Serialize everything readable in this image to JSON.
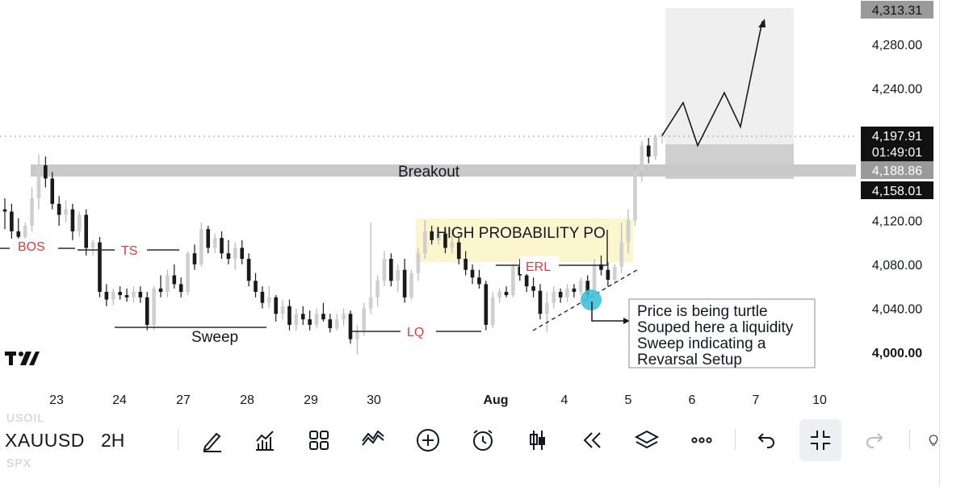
{
  "chart_data": {
    "type": "candlestick",
    "symbol": "XAUUSD",
    "timeframe": "2H",
    "x_ticks": [
      "23",
      "24",
      "27",
      "28",
      "29",
      "30",
      "Aug",
      "4",
      "5",
      "6",
      "7",
      "10"
    ],
    "y_ticks": [
      "4,280.00",
      "4,240.00",
      "4,120.00",
      "4,080.00",
      "4,040.00",
      "4,000.00"
    ],
    "ylim": [
      3986,
      4318
    ],
    "price_labels": {
      "top": "4,313.31",
      "current": "4,197.91",
      "countdown": "01:49:01",
      "target": "4,188.86",
      "stop": "4,158.01"
    },
    "annotations": {
      "bos": "BOS",
      "ts": "TS",
      "sweep": "Sweep",
      "lq": "LQ",
      "erl": "ERL",
      "breakout": "Breakout",
      "zone": "HIGH PROBABILITY PO",
      "note_lines": [
        "Price is being turtle",
        "Souped here a liquidity",
        "Sweep indicating a",
        "Revarsal Setup"
      ]
    },
    "levels": {
      "bos": 4104,
      "ts": 4104,
      "sweep_low": 4022,
      "lq_low": 4017,
      "erl": 4080,
      "breakout": 4188.86
    },
    "projection": [
      4197,
      4227,
      4188,
      4236,
      4205,
      4301
    ],
    "candles": [
      [
        4130,
        4140,
        4112,
        4128
      ],
      [
        4128,
        4135,
        4100,
        4110
      ],
      [
        4110,
        4122,
        4098,
        4105
      ],
      [
        4105,
        4118,
        4102,
        4115
      ],
      [
        4115,
        4150,
        4110,
        4140
      ],
      [
        4140,
        4180,
        4130,
        4170
      ],
      [
        4170,
        4178,
        4150,
        4158
      ],
      [
        4158,
        4164,
        4130,
        4135
      ],
      [
        4135,
        4142,
        4115,
        4125
      ],
      [
        4125,
        4138,
        4118,
        4130
      ],
      [
        4130,
        4135,
        4102,
        4110
      ],
      [
        4110,
        4128,
        4105,
        4125
      ],
      [
        4125,
        4130,
        4088,
        4095
      ],
      [
        4095,
        4102,
        4088,
        4100
      ],
      [
        4100,
        4105,
        4050,
        4055
      ],
      [
        4055,
        4062,
        4042,
        4048
      ],
      [
        4048,
        4058,
        4043,
        4055
      ],
      [
        4055,
        4060,
        4048,
        4052
      ],
      [
        4052,
        4058,
        4046,
        4050
      ],
      [
        4050,
        4060,
        4045,
        4055
      ],
      [
        4055,
        4060,
        4045,
        4050
      ],
      [
        4050,
        4055,
        4020,
        4025
      ],
      [
        4025,
        4060,
        4020,
        4058
      ],
      [
        4058,
        4070,
        4050,
        4055
      ],
      [
        4055,
        4075,
        4050,
        4070
      ],
      [
        4070,
        4080,
        4058,
        4062
      ],
      [
        4062,
        4068,
        4050,
        4055
      ],
      [
        4055,
        4092,
        4052,
        4090
      ],
      [
        4090,
        4098,
        4075,
        4080
      ],
      [
        4080,
        4118,
        4078,
        4112
      ],
      [
        4112,
        4115,
        4090,
        4095
      ],
      [
        4095,
        4108,
        4090,
        4104
      ],
      [
        4104,
        4110,
        4085,
        4090
      ],
      [
        4090,
        4102,
        4080,
        4085
      ],
      [
        4085,
        4100,
        4075,
        4095
      ],
      [
        4095,
        4102,
        4080,
        4085
      ],
      [
        4085,
        4090,
        4060,
        4065
      ],
      [
        4065,
        4072,
        4050,
        4055
      ],
      [
        4055,
        4060,
        4040,
        4045
      ],
      [
        4045,
        4060,
        4040,
        4050
      ],
      [
        4050,
        4052,
        4028,
        4035
      ],
      [
        4035,
        4048,
        4030,
        4042
      ],
      [
        4042,
        4048,
        4020,
        4025
      ],
      [
        4025,
        4040,
        4020,
        4035
      ],
      [
        4035,
        4042,
        4025,
        4030
      ],
      [
        4030,
        4038,
        4020,
        4025
      ],
      [
        4025,
        4040,
        4022,
        4035
      ],
      [
        4035,
        4045,
        4028,
        4030
      ],
      [
        4030,
        4035,
        4018,
        4022
      ],
      [
        4022,
        4035,
        4020,
        4030
      ],
      [
        4030,
        4040,
        4024,
        4035
      ],
      [
        4035,
        4038,
        4008,
        4012
      ],
      [
        4012,
        4025,
        3998,
        4020
      ],
      [
        4020,
        4045,
        4015,
        4040
      ],
      [
        4040,
        4118,
        4035,
        4050
      ],
      [
        4050,
        4070,
        4042,
        4065
      ],
      [
        4065,
        4092,
        4060,
        4085
      ],
      [
        4085,
        4090,
        4060,
        4065
      ],
      [
        4065,
        4080,
        4055,
        4075
      ],
      [
        4075,
        4085,
        4045,
        4050
      ],
      [
        4050,
        4075,
        4048,
        4072
      ],
      [
        4072,
        4095,
        4065,
        4090
      ],
      [
        4090,
        4120,
        4085,
        4110
      ],
      [
        4110,
        4115,
        4098,
        4102
      ],
      [
        4102,
        4112,
        4098,
        4108
      ],
      [
        4108,
        4110,
        4090,
        4095
      ],
      [
        4095,
        4112,
        4090,
        4100
      ],
      [
        4100,
        4105,
        4080,
        4085
      ],
      [
        4085,
        4092,
        4070,
        4075
      ],
      [
        4075,
        4080,
        4062,
        4068
      ],
      [
        4068,
        4075,
        4058,
        4062
      ],
      [
        4062,
        4065,
        4020,
        4025
      ],
      [
        4025,
        4055,
        4022,
        4050
      ],
      [
        4050,
        4058,
        4045,
        4055
      ],
      [
        4055,
        4060,
        4050,
        4052
      ],
      [
        4052,
        4080,
        4050,
        4078
      ],
      [
        4078,
        4085,
        4065,
        4070
      ],
      [
        4070,
        4075,
        4055,
        4060
      ],
      [
        4060,
        4068,
        4050,
        4056
      ],
      [
        4056,
        4062,
        4030,
        4035
      ],
      [
        4035,
        4055,
        4018,
        4045
      ],
      [
        4045,
        4060,
        4040,
        4055
      ],
      [
        4055,
        4058,
        4045,
        4050
      ],
      [
        4050,
        4062,
        4046,
        4058
      ],
      [
        4058,
        4062,
        4050,
        4055
      ],
      [
        4055,
        4068,
        4052,
        4065
      ],
      [
        4065,
        4070,
        4048,
        4052
      ],
      [
        4052,
        4085,
        4048,
        4080
      ],
      [
        4080,
        4088,
        4070,
        4075
      ],
      [
        4075,
        4082,
        4060,
        4066
      ],
      [
        4066,
        4080,
        4062,
        4078
      ],
      [
        4078,
        4118,
        4072,
        4100
      ],
      [
        4100,
        4130,
        4090,
        4120
      ],
      [
        4120,
        4170,
        4115,
        4165
      ],
      [
        4165,
        4192,
        4155,
        4188
      ],
      [
        4188,
        4195,
        4172,
        4178
      ],
      [
        4178,
        4198,
        4175,
        4196
      ],
      [
        4196,
        4200,
        4190,
        4197
      ]
    ]
  },
  "toolbar": {
    "ghost_top": "USOIL",
    "ghost_bottom": "SPX",
    "icons": [
      "pen-icon",
      "indicators-icon",
      "layout-grid-icon",
      "compare-icon",
      "add-circle-icon",
      "alarm-icon",
      "candle-type-icon",
      "replay-icon",
      "layers-icon",
      "more-icon",
      "undo-icon",
      "collapse-icon",
      "redo-icon",
      "bulb-icon"
    ]
  },
  "colors": {
    "up": "#cfcfcf",
    "down": "#1a1a1a",
    "zone_yellow": "#fbf6cd",
    "band_gray": "#c7c7c7",
    "target_box": "#efefef",
    "note_red": "#e03a3a",
    "sweep_dot": "#3fc1d9"
  }
}
